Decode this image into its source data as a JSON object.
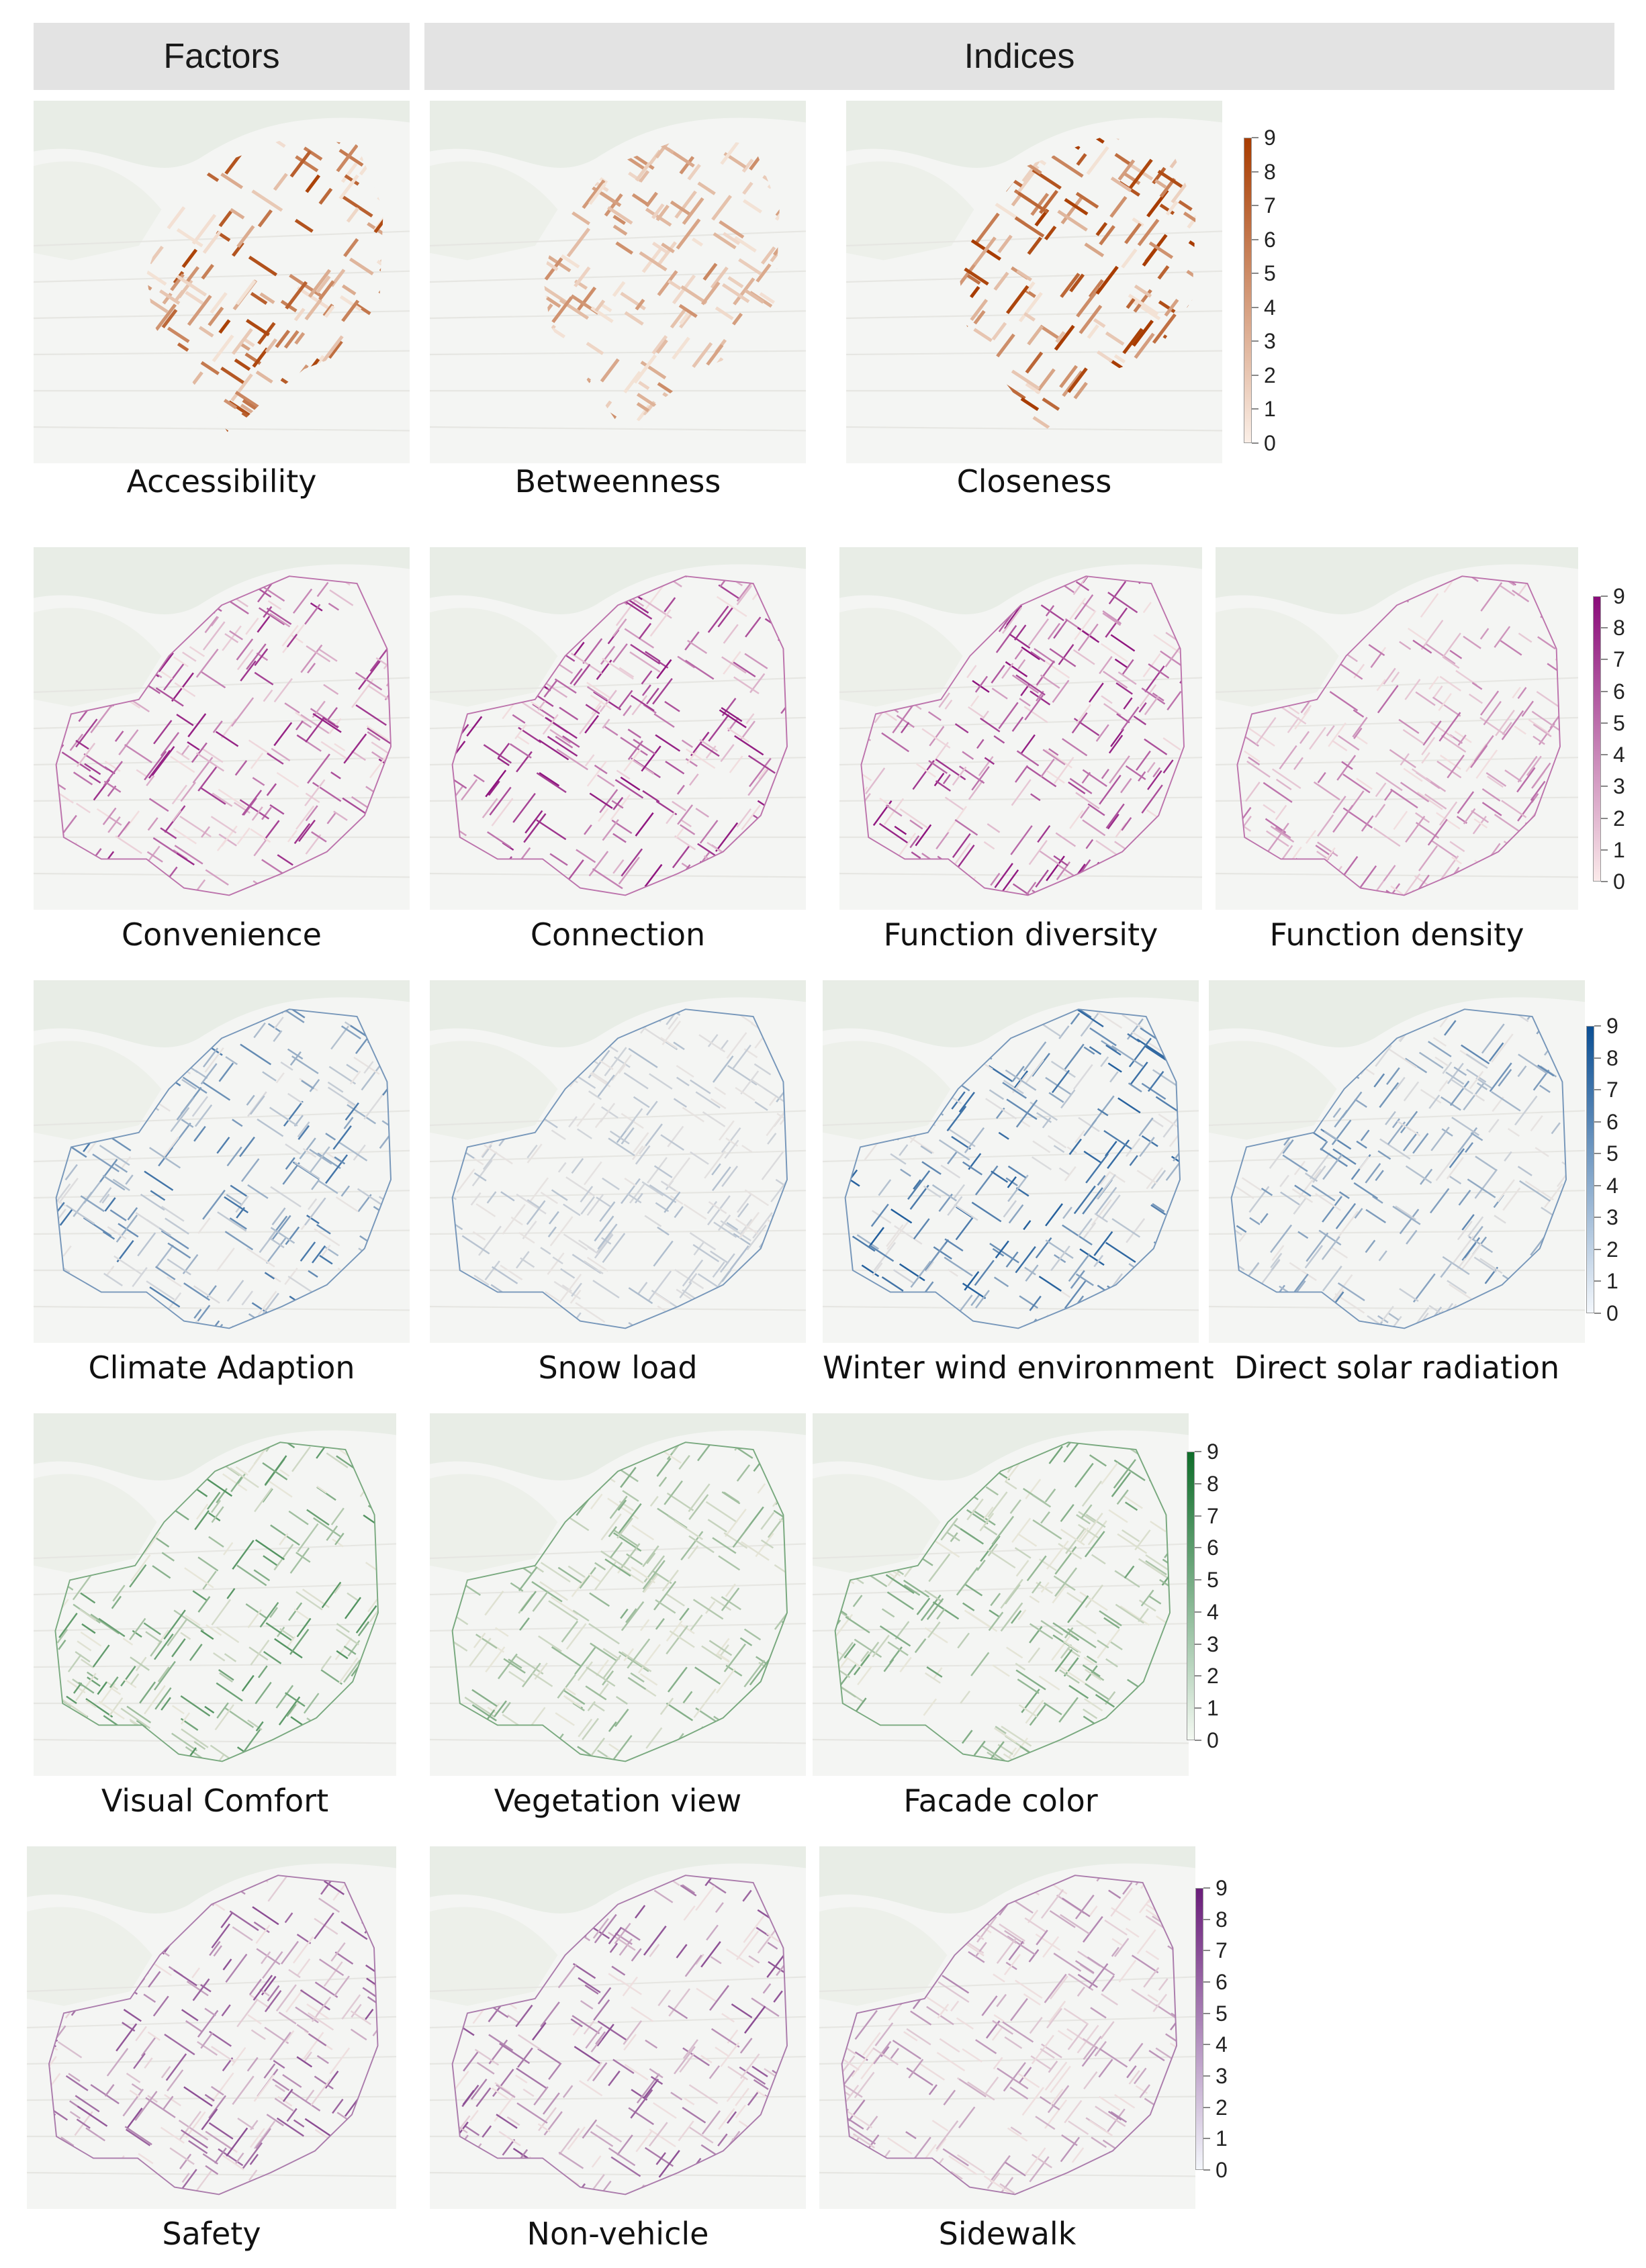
{
  "headers": {
    "factors": "Factors",
    "indices": "Indices"
  },
  "scale_ticks": [
    "9",
    "8",
    "7",
    "6",
    "5",
    "4",
    "3",
    "2",
    "1",
    "0"
  ],
  "rows": [
    {
      "name": "accessibility",
      "color": "#a83c00",
      "panels": [
        {
          "label": "Accessibility",
          "intensity": 0.75,
          "pattern": "core"
        },
        {
          "label": "Betweenness",
          "intensity": 0.45,
          "pattern": "core"
        },
        {
          "label": "Closeness",
          "intensity": 0.85,
          "pattern": "core"
        }
      ]
    },
    {
      "name": "convenience",
      "color": "#8a0c7a",
      "panels": [
        {
          "label": "Convenience",
          "intensity": 0.7,
          "pattern": "full"
        },
        {
          "label": "Connection",
          "intensity": 0.75,
          "pattern": "full"
        },
        {
          "label": "Function diversity",
          "intensity": 0.75,
          "pattern": "full"
        },
        {
          "label": "Function density",
          "intensity": 0.45,
          "pattern": "full"
        }
      ]
    },
    {
      "name": "climate",
      "color": "#0b4f94",
      "panels": [
        {
          "label": "Climate Adaption",
          "intensity": 0.6,
          "pattern": "full"
        },
        {
          "label": "Snow load",
          "intensity": 0.25,
          "pattern": "full"
        },
        {
          "label": "Winter wind environment",
          "intensity": 0.7,
          "pattern": "full"
        },
        {
          "label": "Direct solar radiation",
          "intensity": 0.5,
          "pattern": "full"
        }
      ]
    },
    {
      "name": "visual",
      "color": "#0f6e2a",
      "panels": [
        {
          "label": "Visual Comfort",
          "intensity": 0.55,
          "pattern": "full"
        },
        {
          "label": "Vegetation view",
          "intensity": 0.4,
          "pattern": "full"
        },
        {
          "label": "Facade color",
          "intensity": 0.45,
          "pattern": "full"
        }
      ]
    },
    {
      "name": "safety",
      "color": "#6a1d7a",
      "panels": [
        {
          "label": "Safety",
          "intensity": 0.6,
          "pattern": "full"
        },
        {
          "label": "Non-vehicle",
          "intensity": 0.6,
          "pattern": "full"
        },
        {
          "label": "Sidewalk",
          "intensity": 0.4,
          "pattern": "full"
        }
      ]
    }
  ]
}
